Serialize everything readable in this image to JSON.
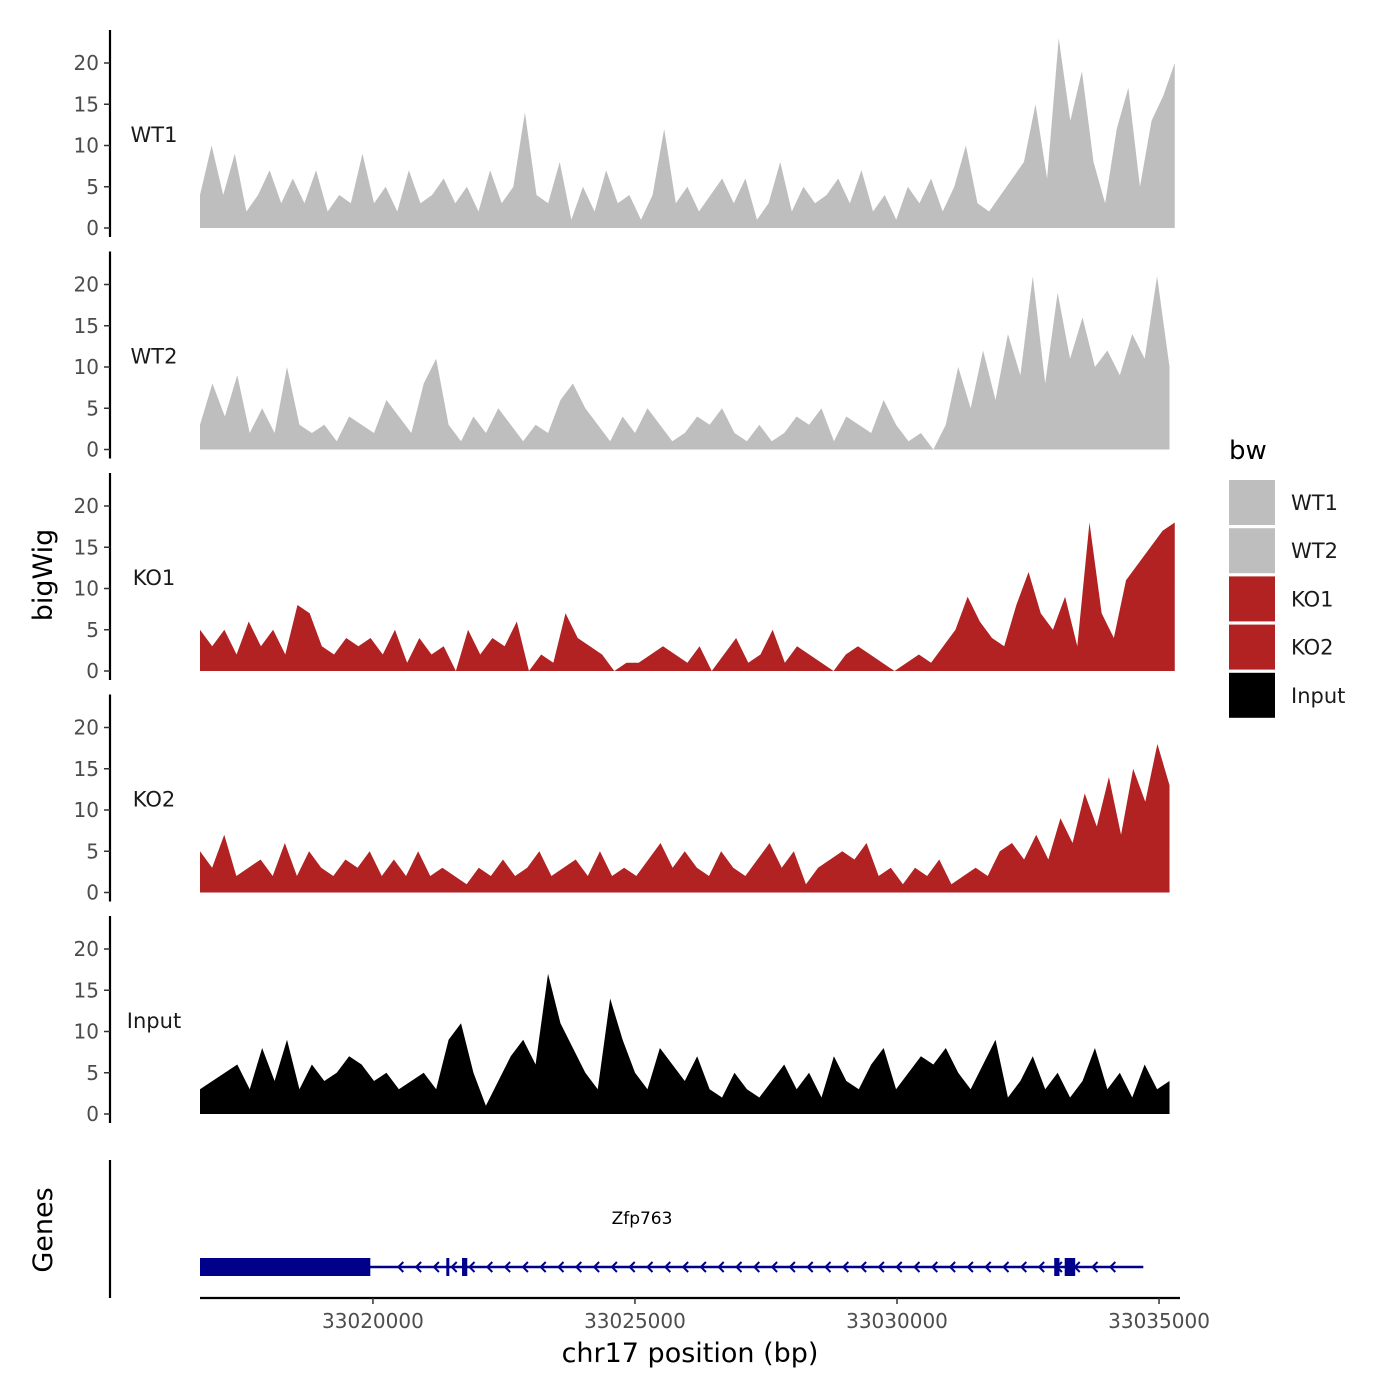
{
  "chart_data": {
    "type": "area",
    "title": "",
    "y_axis_title": "bigWig",
    "genes_axis_title": "Genes",
    "x_axis_title": "chr17 position (bp)",
    "xlim": [
      33016700,
      33035400
    ],
    "ylim": [
      0,
      24
    ],
    "y_ticks": [
      0,
      5,
      10,
      15,
      20
    ],
    "x_ticks": [
      33020000,
      33025000,
      33030000,
      33035000
    ],
    "x_tick_labels": [
      "33020000",
      "33025000",
      "33030000",
      "33035000"
    ],
    "legend": {
      "title": "bw",
      "position": "right",
      "entries": [
        {
          "label": "WT1",
          "color": "#bebebe"
        },
        {
          "label": "WT2",
          "color": "#bebebe"
        },
        {
          "label": "KO1",
          "color": "#b22222"
        },
        {
          "label": "KO2",
          "color": "#b22222"
        },
        {
          "label": "Input",
          "color": "#000000"
        }
      ]
    },
    "tracks": [
      {
        "name": "WT1",
        "color": "#bebebe",
        "x_start": 33016700,
        "x_end": 33035300,
        "values": [
          4,
          10,
          4,
          9,
          2,
          4,
          7,
          3,
          6,
          3,
          7,
          2,
          4,
          3,
          9,
          3,
          5,
          2,
          7,
          3,
          4,
          6,
          3,
          5,
          2,
          7,
          3,
          5,
          14,
          4,
          3,
          8,
          1,
          5,
          2,
          7,
          3,
          4,
          1,
          4,
          12,
          3,
          5,
          2,
          4,
          6,
          3,
          6,
          1,
          3,
          8,
          2,
          5,
          3,
          4,
          6,
          3,
          7,
          2,
          4,
          1,
          5,
          3,
          6,
          2,
          5,
          10,
          3,
          2,
          4,
          6,
          8,
          15,
          6,
          23,
          13,
          19,
          8,
          3,
          12,
          17,
          5,
          13,
          16,
          20
        ]
      },
      {
        "name": "WT2",
        "color": "#bebebe",
        "x_start": 33016700,
        "x_end": 33035200,
        "values": [
          3,
          8,
          4,
          9,
          2,
          5,
          2,
          10,
          3,
          2,
          3,
          1,
          4,
          3,
          2,
          6,
          4,
          2,
          8,
          11,
          3,
          1,
          4,
          2,
          5,
          3,
          1,
          3,
          2,
          6,
          8,
          5,
          3,
          1,
          4,
          2,
          5,
          3,
          1,
          2,
          4,
          3,
          5,
          2,
          1,
          3,
          1,
          2,
          4,
          3,
          5,
          1,
          4,
          3,
          2,
          6,
          3,
          1,
          2,
          0,
          3,
          10,
          5,
          12,
          6,
          14,
          9,
          21,
          8,
          19,
          11,
          16,
          10,
          12,
          9,
          14,
          11,
          21,
          10
        ]
      },
      {
        "name": "KO1",
        "color": "#b22222",
        "x_start": 33016700,
        "x_end": 33035300,
        "values": [
          5,
          3,
          5,
          2,
          6,
          3,
          5,
          2,
          8,
          7,
          3,
          2,
          4,
          3,
          4,
          2,
          5,
          1,
          4,
          2,
          3,
          0,
          5,
          2,
          4,
          3,
          6,
          0,
          2,
          1,
          7,
          4,
          3,
          2,
          0,
          1,
          1,
          2,
          3,
          2,
          1,
          3,
          0,
          2,
          4,
          1,
          2,
          5,
          1,
          3,
          2,
          1,
          0,
          2,
          3,
          2,
          1,
          0,
          1,
          2,
          1,
          3,
          5,
          9,
          6,
          4,
          3,
          8,
          12,
          7,
          5,
          9,
          3,
          18,
          7,
          4,
          11,
          13,
          15,
          17,
          18
        ]
      },
      {
        "name": "KO2",
        "color": "#b22222",
        "x_start": 33016700,
        "x_end": 33035200,
        "values": [
          5,
          3,
          7,
          2,
          3,
          4,
          2,
          6,
          2,
          5,
          3,
          2,
          4,
          3,
          5,
          2,
          4,
          2,
          5,
          2,
          3,
          2,
          1,
          3,
          2,
          4,
          2,
          3,
          5,
          2,
          3,
          4,
          2,
          5,
          2,
          3,
          2,
          4,
          6,
          3,
          5,
          3,
          2,
          5,
          3,
          2,
          4,
          6,
          3,
          5,
          1,
          3,
          4,
          5,
          4,
          6,
          2,
          3,
          1,
          3,
          2,
          4,
          1,
          2,
          3,
          2,
          5,
          6,
          4,
          7,
          4,
          9,
          6,
          12,
          8,
          14,
          7,
          15,
          11,
          18,
          13
        ]
      },
      {
        "name": "Input",
        "color": "#000000",
        "x_start": 33016700,
        "x_end": 33035200,
        "values": [
          3,
          4,
          5,
          6,
          3,
          8,
          4,
          9,
          3,
          6,
          4,
          5,
          7,
          6,
          4,
          5,
          3,
          4,
          5,
          3,
          9,
          11,
          5,
          1,
          4,
          7,
          9,
          6,
          17,
          11,
          8,
          5,
          3,
          14,
          9,
          5,
          3,
          8,
          6,
          4,
          7,
          3,
          2,
          5,
          3,
          2,
          4,
          6,
          3,
          5,
          2,
          7,
          4,
          3,
          6,
          8,
          3,
          5,
          7,
          6,
          8,
          5,
          3,
          6,
          9,
          2,
          4,
          7,
          3,
          5,
          2,
          4,
          8,
          3,
          5,
          2,
          6,
          3,
          4
        ]
      }
    ],
    "gene": {
      "name": "Zfp763",
      "strand": "-",
      "start": 33016700,
      "end": 33034700,
      "thick_start": 33016700,
      "thick_end": 33019950,
      "exons": [
        [
          33021400,
          33021450
        ],
        [
          33021700,
          33021800
        ],
        [
          33033000,
          33033100
        ],
        [
          33033200,
          33033400
        ]
      ],
      "color": "#00008b"
    }
  }
}
